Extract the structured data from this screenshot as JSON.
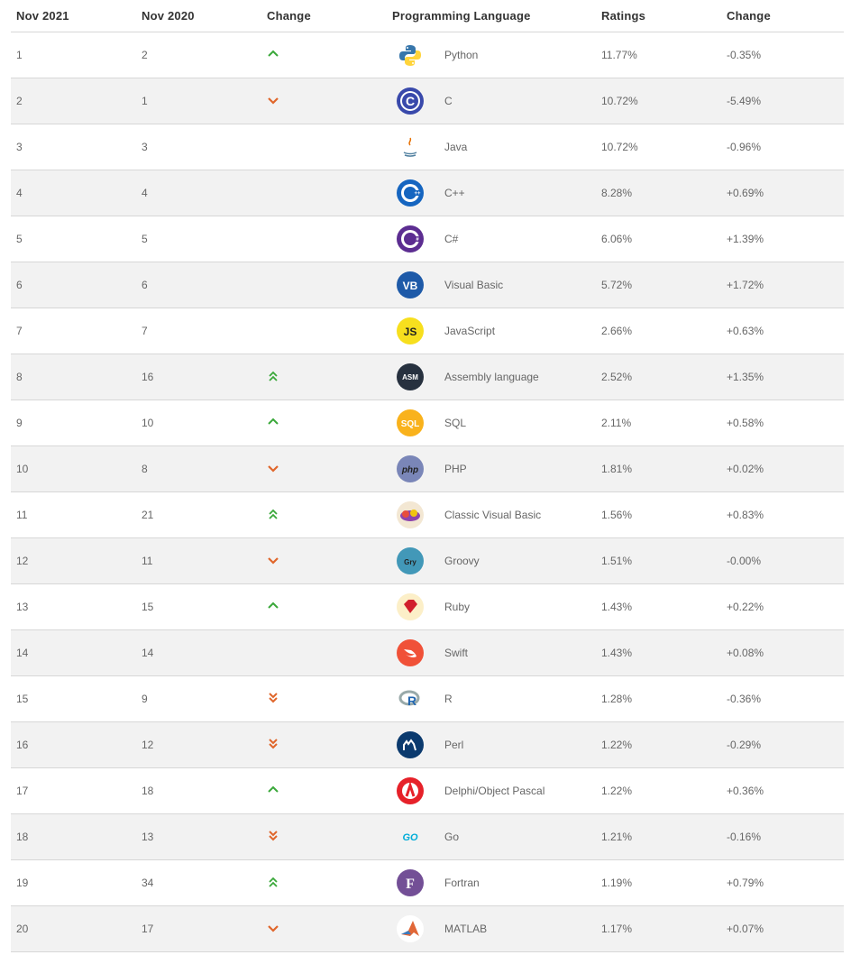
{
  "headers": {
    "nov2021": "Nov 2021",
    "nov2020": "Nov 2020",
    "change": "Change",
    "language": "Programming Language",
    "ratings": "Ratings",
    "change_pct": "Change"
  },
  "colors": {
    "up": "#3aa83a",
    "down": "#e0662b",
    "row_alt": "#f2f2f2",
    "divider": "#d7d7d7"
  },
  "rows": [
    {
      "rank": "1",
      "prev": "2",
      "change": "up",
      "language": "Python",
      "rating": "11.77%",
      "delta": "-0.35%",
      "icon": "python-icon"
    },
    {
      "rank": "2",
      "prev": "1",
      "change": "down",
      "language": "C",
      "rating": "10.72%",
      "delta": "-5.49%",
      "icon": "c-icon"
    },
    {
      "rank": "3",
      "prev": "3",
      "change": "none",
      "language": "Java",
      "rating": "10.72%",
      "delta": "-0.96%",
      "icon": "java-icon"
    },
    {
      "rank": "4",
      "prev": "4",
      "change": "none",
      "language": "C++",
      "rating": "8.28%",
      "delta": "+0.69%",
      "icon": "cpp-icon"
    },
    {
      "rank": "5",
      "prev": "5",
      "change": "none",
      "language": "C#",
      "rating": "6.06%",
      "delta": "+1.39%",
      "icon": "csharp-icon"
    },
    {
      "rank": "6",
      "prev": "6",
      "change": "none",
      "language": "Visual Basic",
      "rating": "5.72%",
      "delta": "+1.72%",
      "icon": "visual-basic-icon"
    },
    {
      "rank": "7",
      "prev": "7",
      "change": "none",
      "language": "JavaScript",
      "rating": "2.66%",
      "delta": "+0.63%",
      "icon": "javascript-icon"
    },
    {
      "rank": "8",
      "prev": "16",
      "change": "up2",
      "language": "Assembly language",
      "rating": "2.52%",
      "delta": "+1.35%",
      "icon": "assembly-icon"
    },
    {
      "rank": "9",
      "prev": "10",
      "change": "up",
      "language": "SQL",
      "rating": "2.11%",
      "delta": "+0.58%",
      "icon": "sql-icon"
    },
    {
      "rank": "10",
      "prev": "8",
      "change": "down",
      "language": "PHP",
      "rating": "1.81%",
      "delta": "+0.02%",
      "icon": "php-icon"
    },
    {
      "rank": "11",
      "prev": "21",
      "change": "up2",
      "language": "Classic Visual Basic",
      "rating": "1.56%",
      "delta": "+0.83%",
      "icon": "classic-vb-icon"
    },
    {
      "rank": "12",
      "prev": "11",
      "change": "down",
      "language": "Groovy",
      "rating": "1.51%",
      "delta": "-0.00%",
      "icon": "groovy-icon"
    },
    {
      "rank": "13",
      "prev": "15",
      "change": "up",
      "language": "Ruby",
      "rating": "1.43%",
      "delta": "+0.22%",
      "icon": "ruby-icon"
    },
    {
      "rank": "14",
      "prev": "14",
      "change": "none",
      "language": "Swift",
      "rating": "1.43%",
      "delta": "+0.08%",
      "icon": "swift-icon"
    },
    {
      "rank": "15",
      "prev": "9",
      "change": "down2",
      "language": "R",
      "rating": "1.28%",
      "delta": "-0.36%",
      "icon": "r-icon"
    },
    {
      "rank": "16",
      "prev": "12",
      "change": "down2",
      "language": "Perl",
      "rating": "1.22%",
      "delta": "-0.29%",
      "icon": "perl-icon"
    },
    {
      "rank": "17",
      "prev": "18",
      "change": "up",
      "language": "Delphi/Object Pascal",
      "rating": "1.22%",
      "delta": "+0.36%",
      "icon": "delphi-icon"
    },
    {
      "rank": "18",
      "prev": "13",
      "change": "down2",
      "language": "Go",
      "rating": "1.21%",
      "delta": "-0.16%",
      "icon": "go-icon"
    },
    {
      "rank": "19",
      "prev": "34",
      "change": "up2",
      "language": "Fortran",
      "rating": "1.19%",
      "delta": "+0.79%",
      "icon": "fortran-icon"
    },
    {
      "rank": "20",
      "prev": "17",
      "change": "down",
      "language": "MATLAB",
      "rating": "1.17%",
      "delta": "+0.07%",
      "icon": "matlab-icon"
    }
  ]
}
